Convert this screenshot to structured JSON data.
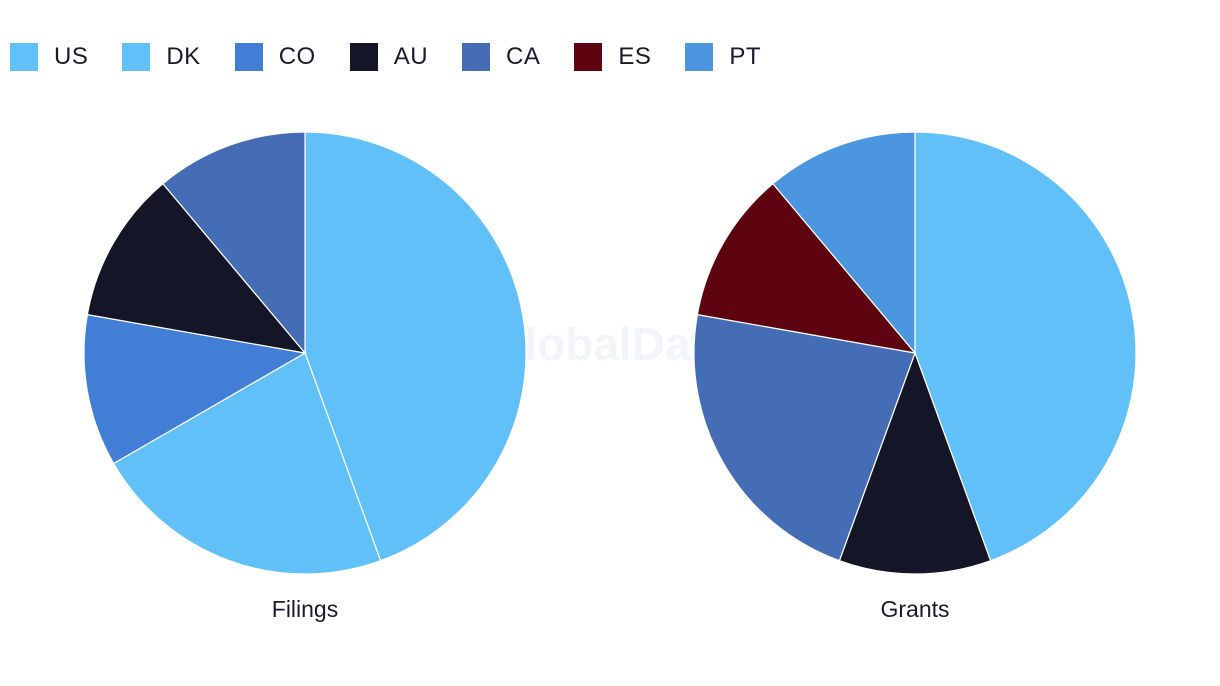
{
  "watermark": "GlobalData",
  "legend": [
    {
      "label": "US",
      "color": "#62c0f8"
    },
    {
      "label": "DK",
      "color": "#62c0f8"
    },
    {
      "label": "CO",
      "color": "#427dd6"
    },
    {
      "label": "AU",
      "color": "#141628"
    },
    {
      "label": "CA",
      "color": "#456db5"
    },
    {
      "label": "ES",
      "color": "#5e0410"
    },
    {
      "label": "PT",
      "color": "#4c96e0"
    }
  ],
  "chart_data": [
    {
      "type": "pie",
      "title": "Filings",
      "slices": [
        {
          "label": "US",
          "value": 4,
          "color": "#62c0f8"
        },
        {
          "label": "DK",
          "value": 2,
          "color": "#62c0f8"
        },
        {
          "label": "CO",
          "value": 1,
          "color": "#427dd6"
        },
        {
          "label": "AU",
          "value": 1,
          "color": "#141628"
        },
        {
          "label": "CA",
          "value": 1,
          "color": "#456db5"
        }
      ]
    },
    {
      "type": "pie",
      "title": "Grants",
      "slices": [
        {
          "label": "US",
          "value": 4,
          "color": "#62c0f8"
        },
        {
          "label": "AU",
          "value": 1,
          "color": "#141628"
        },
        {
          "label": "CA",
          "value": 2,
          "color": "#456db5"
        },
        {
          "label": "ES",
          "value": 1,
          "color": "#5e0410"
        },
        {
          "label": "PT",
          "value": 1,
          "color": "#4c96e0"
        }
      ]
    }
  ]
}
